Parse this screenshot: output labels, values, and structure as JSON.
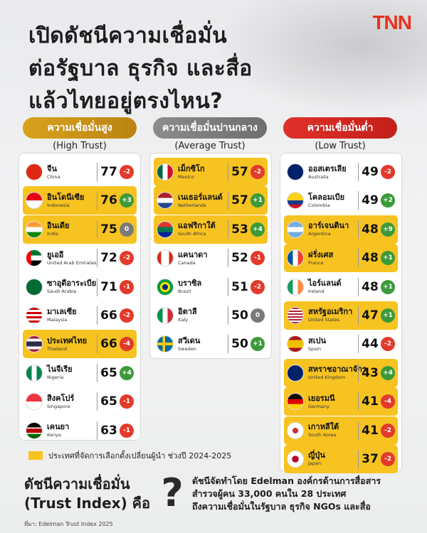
{
  "header": {
    "title_lines": [
      "เปิดดัชนีความเชื่อมั่น",
      "ต่อรัฐบาล ธุรกิจ และสื่อ",
      "แล้วไทยอยู่ตรงไหน?"
    ],
    "logo": "TNN"
  },
  "columns": {
    "high": {
      "label": "ความเชื่อมั่นสูง",
      "sub": "(High Trust)"
    },
    "avg": {
      "label": "ความเชื่อมั่นปานกลาง",
      "sub": "(Average Trust)"
    },
    "low": {
      "label": "ความเชื่อมั่นต่ำ",
      "sub": "(Low Trust)"
    }
  },
  "high": [
    {
      "th": "จีน",
      "en": "China",
      "score": "77",
      "chg": "-2",
      "dir": "neg",
      "hl": false,
      "flag": "cn"
    },
    {
      "th": "อินโดนีเซีย",
      "en": "Indonesia",
      "score": "76",
      "chg": "+3",
      "dir": "pos",
      "hl": true,
      "flag": "id"
    },
    {
      "th": "อินเดีย",
      "en": "India",
      "score": "75",
      "chg": "0",
      "dir": "zero",
      "hl": true,
      "flag": "in"
    },
    {
      "th": "ยูเออี",
      "en": "United Arab Emirates",
      "score": "72",
      "chg": "-2",
      "dir": "neg",
      "hl": false,
      "flag": "ae"
    },
    {
      "th": "ซาอุดีอาระเบีย",
      "en": "Saudi Arabia",
      "score": "71",
      "chg": "-1",
      "dir": "neg",
      "hl": false,
      "flag": "sa"
    },
    {
      "th": "มาเลเซีย",
      "en": "Malaysia",
      "score": "66",
      "chg": "-2",
      "dir": "neg",
      "hl": false,
      "flag": "my"
    },
    {
      "th": "ประเทศไทย",
      "en": "Thailand",
      "score": "66",
      "chg": "-4",
      "dir": "neg",
      "hl": true,
      "flag": "th"
    },
    {
      "th": "ไนจีเรีย",
      "en": "Nigeria",
      "score": "65",
      "chg": "+4",
      "dir": "pos",
      "hl": false,
      "flag": "ng"
    },
    {
      "th": "สิงคโปร์",
      "en": "Singapore",
      "score": "65",
      "chg": "-1",
      "dir": "neg",
      "hl": false,
      "flag": "sg"
    },
    {
      "th": "เคนยา",
      "en": "Kenya",
      "score": "63",
      "chg": "-1",
      "dir": "neg",
      "hl": false,
      "flag": "ke"
    }
  ],
  "avg": [
    {
      "th": "เม็กซิโก",
      "en": "Mexico",
      "score": "57",
      "chg": "-2",
      "dir": "neg",
      "hl": true,
      "flag": "mx"
    },
    {
      "th": "เนเธอร์แลนด์",
      "en": "Netherlands",
      "score": "57",
      "chg": "+1",
      "dir": "pos",
      "hl": true,
      "flag": "nl"
    },
    {
      "th": "แอฟริกาใต้",
      "en": "South Africa",
      "score": "53",
      "chg": "+4",
      "dir": "pos",
      "hl": true,
      "flag": "za"
    },
    {
      "th": "แคนาดา",
      "en": "Canada",
      "score": "52",
      "chg": "-1",
      "dir": "neg",
      "hl": false,
      "flag": "ca"
    },
    {
      "th": "บราซิล",
      "en": "Brazil",
      "score": "51",
      "chg": "-2",
      "dir": "neg",
      "hl": false,
      "flag": "br"
    },
    {
      "th": "อิตาลี",
      "en": "Italy",
      "score": "50",
      "chg": "0",
      "dir": "zero",
      "hl": false,
      "flag": "it"
    },
    {
      "th": "สวีเดน",
      "en": "Sweden",
      "score": "50",
      "chg": "+1",
      "dir": "pos",
      "hl": false,
      "flag": "se"
    }
  ],
  "low": [
    {
      "th": "ออสเตรเลีย",
      "en": "Australia",
      "score": "49",
      "chg": "-2",
      "dir": "neg",
      "hl": false,
      "flag": "au"
    },
    {
      "th": "โคลอมเบีย",
      "en": "Colombia",
      "score": "49",
      "chg": "+2",
      "dir": "pos",
      "hl": false,
      "flag": "co"
    },
    {
      "th": "อาร์เจนตินา",
      "en": "Argentina",
      "score": "48",
      "chg": "+9",
      "dir": "pos",
      "hl": true,
      "flag": "ar"
    },
    {
      "th": "ฝรั่งเศส",
      "en": "France",
      "score": "48",
      "chg": "+1",
      "dir": "pos",
      "hl": true,
      "flag": "fr"
    },
    {
      "th": "ไอร์แลนด์",
      "en": "Ireland",
      "score": "48",
      "chg": "+1",
      "dir": "pos",
      "hl": false,
      "flag": "ie"
    },
    {
      "th": "สหรัฐอเมริกา",
      "en": "United States",
      "score": "47",
      "chg": "+1",
      "dir": "pos",
      "hl": true,
      "flag": "us"
    },
    {
      "th": "สเปน",
      "en": "Spain",
      "score": "44",
      "chg": "-2",
      "dir": "neg",
      "hl": false,
      "flag": "es"
    },
    {
      "th": "สหราชอาณาจักร",
      "en": "United Kingdom",
      "score": "43",
      "chg": "+4",
      "dir": "pos",
      "hl": true,
      "flag": "gb"
    },
    {
      "th": "เยอรมนี",
      "en": "Germany",
      "score": "41",
      "chg": "-4",
      "dir": "neg",
      "hl": true,
      "flag": "de"
    },
    {
      "th": "เกาหลีใต้",
      "en": "South Korea",
      "score": "41",
      "chg": "-2",
      "dir": "neg",
      "hl": true,
      "flag": "kr"
    },
    {
      "th": "ญี่ปุ่น",
      "en": "Japan",
      "score": "37",
      "chg": "-2",
      "dir": "neg",
      "hl": true,
      "flag": "jp"
    }
  ],
  "legend": {
    "text": "ประเทศที่จัดการเลือกตั้งเปลี่ยนผู้นำ ช่วงปี 2024-2025",
    "color": "#f7c321"
  },
  "footer": {
    "left_line1": "ดัชนีความเชื่อมั่น",
    "left_line2": "(Trust Index) คือ",
    "qmark": "?",
    "right_lines": [
      "ดัชนีจัดทำโดย Edelman องค์กรด้านการสื่อสาร",
      "สำรวจผู้คน 33,000 คนใน 28 ประเทศ",
      "ถึงความเชื่อมั่นในรัฐบาล ธุรกิจ NGOs และสื่อ"
    ],
    "source": "ที่มา: Edelman Trust Index 2025"
  }
}
